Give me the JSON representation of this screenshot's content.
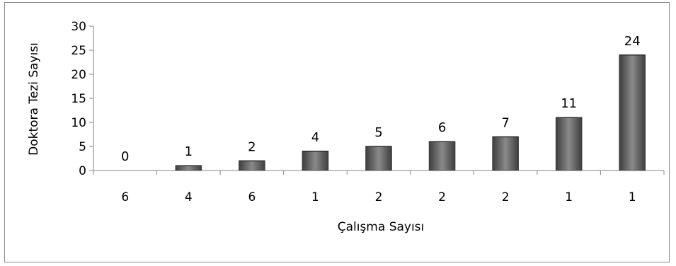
{
  "chart_data": {
    "type": "bar",
    "title": "",
    "xlabel": "Çalışma Sayısı",
    "ylabel": "Doktora Tezi Sayısı",
    "categories": [
      "6",
      "4",
      "6",
      "1",
      "2",
      "2",
      "2",
      "1",
      "1"
    ],
    "values": [
      0,
      1,
      2,
      4,
      5,
      6,
      7,
      11,
      24
    ],
    "ylim": [
      0,
      30
    ],
    "yticks": [
      "0",
      "5",
      "10",
      "15",
      "20",
      "25",
      "30"
    ],
    "grid": false,
    "legend": "none",
    "bar_color": "#5a5a5a"
  }
}
